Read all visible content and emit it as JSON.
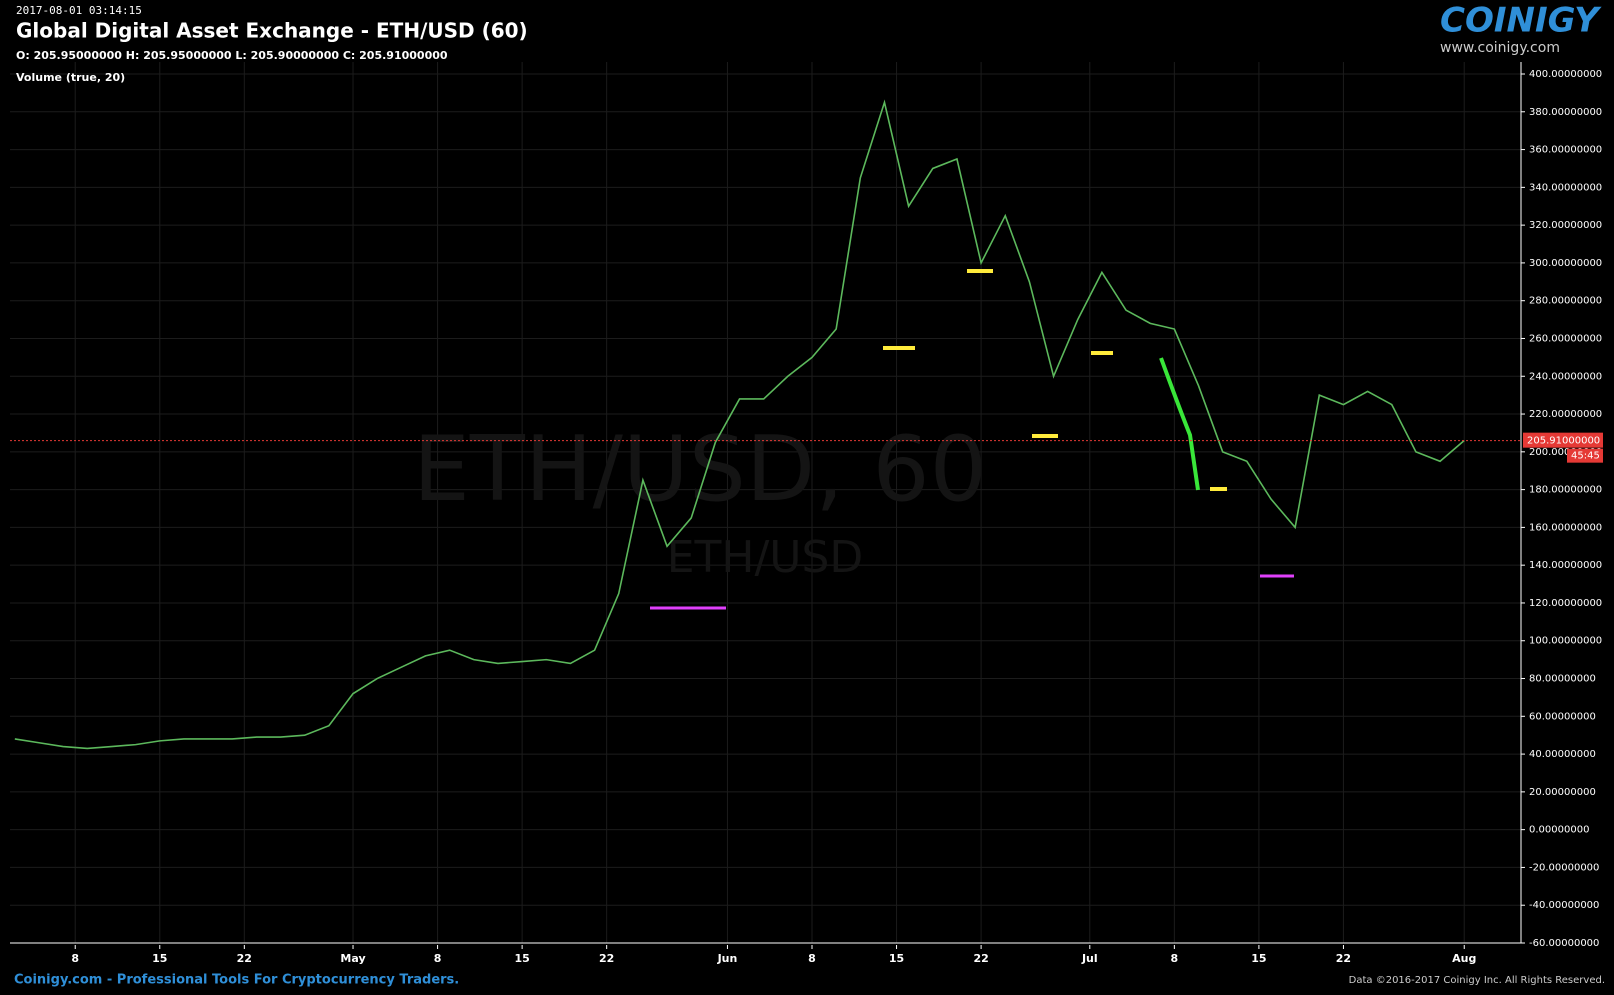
{
  "chart_data": {
    "type": "line",
    "timestamp": "2017-08-01 03:14:15",
    "title": "Global Digital Asset Exchange - ETH/USD (60)",
    "ohlc": "O: 205.95000000 H: 205.95000000 L: 205.90000000 C: 205.91000000",
    "indicator": "Volume (true, 20)",
    "watermark": "ETH/USD, 60",
    "watermark_sub": "ETH/USD",
    "logo": "COINIGY",
    "logo_url": "www.coinigy.com",
    "footer_left": "Coinigy.com - Professional Tools For Cryptocurrency Traders.",
    "footer_right": "Data ©2016-2017 Coinigy Inc. All Rights Reserved.",
    "last_price": {
      "value": 205.91,
      "label": "205.91000000"
    },
    "countdown": "45:45",
    "grid": true,
    "x": [
      2,
      4,
      6,
      8,
      10,
      12,
      14,
      16,
      18,
      20,
      22,
      24,
      26,
      28,
      30,
      32,
      34,
      36,
      38,
      40,
      42,
      44,
      46,
      48,
      50,
      52,
      54,
      56,
      58,
      60,
      62,
      64,
      66,
      68,
      70,
      72,
      74,
      76,
      78,
      80,
      82,
      84,
      86,
      88,
      90,
      92,
      94,
      96,
      98,
      100,
      102,
      104,
      106,
      108,
      110,
      112,
      114,
      116,
      118,
      120,
      122
    ],
    "series": [
      {
        "name": "ETH/USD",
        "color": "#5cb85c",
        "values": [
          48,
          46,
          44,
          43,
          44,
          45,
          47,
          48,
          48,
          48,
          49,
          49,
          50,
          55,
          72,
          80,
          86,
          92,
          95,
          90,
          88,
          89,
          90,
          88,
          95,
          125,
          185,
          150,
          165,
          205,
          228,
          228,
          240,
          250,
          265,
          345,
          385,
          330,
          350,
          355,
          300,
          325,
          290,
          240,
          270,
          295,
          275,
          268,
          265,
          235,
          200,
          195,
          175,
          160,
          230,
          225,
          232,
          225,
          200,
          195,
          206
        ]
      }
    ],
    "xlim": [
      1.6,
      126.7
    ],
    "xticks": [
      {
        "value": 7,
        "label": "8"
      },
      {
        "value": 14,
        "label": "15"
      },
      {
        "value": 21,
        "label": "22"
      },
      {
        "value": 30,
        "label": "May"
      },
      {
        "value": 37,
        "label": "8"
      },
      {
        "value": 44,
        "label": "15"
      },
      {
        "value": 51,
        "label": "22"
      },
      {
        "value": 61,
        "label": "Jun"
      },
      {
        "value": 68,
        "label": "8"
      },
      {
        "value": 75,
        "label": "15"
      },
      {
        "value": 82,
        "label": "22"
      },
      {
        "value": 91,
        "label": "Jul"
      },
      {
        "value": 98,
        "label": "8"
      },
      {
        "value": 105,
        "label": "15"
      },
      {
        "value": 112,
        "label": "22"
      },
      {
        "value": 122,
        "label": "Aug"
      }
    ],
    "ylim": [
      -60,
      400
    ],
    "yticks": [
      {
        "value": 400,
        "label": "400.00000000"
      },
      {
        "value": 380,
        "label": "380.00000000"
      },
      {
        "value": 360,
        "label": "360.00000000"
      },
      {
        "value": 340,
        "label": "340.00000000"
      },
      {
        "value": 320,
        "label": "320.00000000"
      },
      {
        "value": 300,
        "label": "300.00000000"
      },
      {
        "value": 280,
        "label": "280.00000000"
      },
      {
        "value": 260,
        "label": "260.00000000"
      },
      {
        "value": 240,
        "label": "240.00000000"
      },
      {
        "value": 220,
        "label": "220.00000000"
      },
      {
        "value": 200,
        "label": "200.00000000"
      },
      {
        "value": 180,
        "label": "180.00000000"
      },
      {
        "value": 160,
        "label": "160.00000000"
      },
      {
        "value": 140,
        "label": "140.00000000"
      },
      {
        "value": 120,
        "label": "120.00000000"
      },
      {
        "value": 100,
        "label": "100.00000000"
      },
      {
        "value": 80,
        "label": "80.00000000"
      },
      {
        "value": 60,
        "label": "60.00000000"
      },
      {
        "value": 40,
        "label": "40.00000000"
      },
      {
        "value": 20,
        "label": "20.00000000"
      },
      {
        "value": 0,
        "label": "0.00000000"
      },
      {
        "value": -20,
        "label": "-20.00000000"
      },
      {
        "value": -40,
        "label": "-40.00000000"
      },
      {
        "value": -60,
        "label": "-60.00000000"
      }
    ]
  }
}
